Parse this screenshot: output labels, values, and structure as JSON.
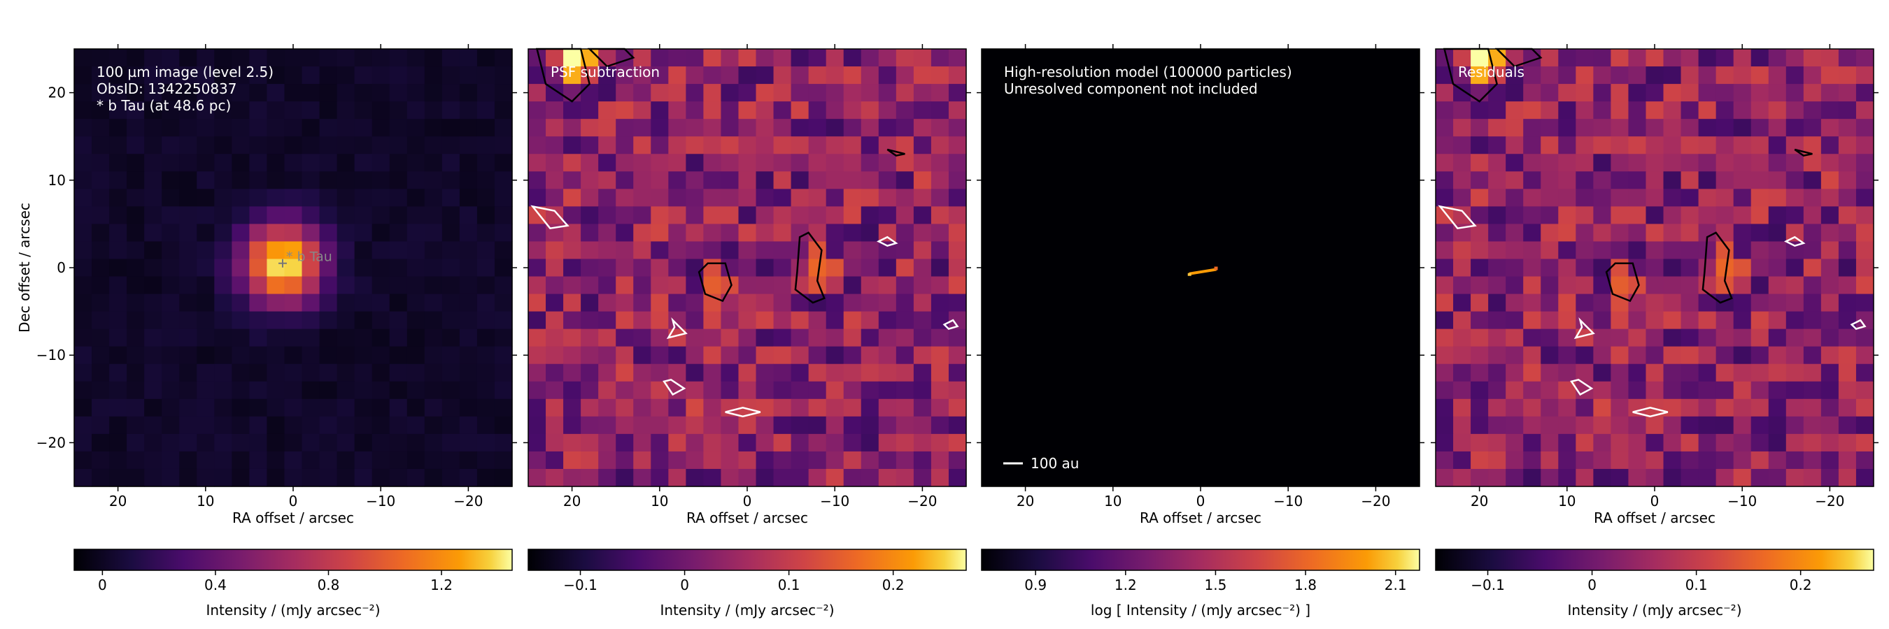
{
  "figure": {
    "panels": [
      {
        "key": "obs",
        "annotation_lines": [
          "100 µm image (level 2.5)",
          "ObsID: 1342250837",
          "* b Tau (at 48.6 pc)"
        ],
        "marker_label": "* b Tau",
        "xlabel": "RA offset / arcsec",
        "ylabel": "Dec offset / arcsec",
        "colorbar": {
          "label": "Intensity / (mJy arcsec⁻²)",
          "ticks": [
            "0",
            "0.4",
            "0.8",
            "1.2"
          ],
          "tick_values": [
            0,
            0.4,
            0.8,
            1.2
          ],
          "range": [
            -0.1,
            1.45
          ]
        }
      },
      {
        "key": "psfsub",
        "annotation_lines": [
          "PSF subtraction"
        ],
        "xlabel": "RA offset / arcsec",
        "colorbar": {
          "label": "Intensity / (mJy arcsec⁻²)",
          "ticks": [
            "−0.1",
            "0",
            "0.1",
            "0.2"
          ],
          "tick_values": [
            -0.1,
            0,
            0.1,
            0.2
          ],
          "range": [
            -0.15,
            0.27
          ]
        }
      },
      {
        "key": "model",
        "annotation_lines": [
          "High-resolution model (100000 particles)",
          "Unresolved component not included"
        ],
        "scalebar_label": "100 au",
        "xlabel": "RA offset / arcsec",
        "colorbar": {
          "label": "log [ Intensity / (mJy arcsec⁻²) ]",
          "ticks": [
            "0.9",
            "1.2",
            "1.5",
            "1.8",
            "2.1"
          ],
          "tick_values": [
            0.9,
            1.2,
            1.5,
            1.8,
            2.1
          ],
          "range": [
            0.72,
            2.18
          ]
        }
      },
      {
        "key": "resid",
        "annotation_lines": [
          "Residuals"
        ],
        "xlabel": "RA offset / arcsec",
        "colorbar": {
          "label": "Intensity / (mJy arcsec⁻²)",
          "ticks": [
            "−0.1",
            "0",
            "0.1",
            "0.2"
          ],
          "tick_values": [
            -0.1,
            0,
            0.1,
            0.2
          ],
          "range": [
            -0.15,
            0.27
          ]
        }
      }
    ]
  },
  "chart_data": [
    {
      "type": "heatmap",
      "panel": "100 µm image (level 2.5)",
      "x_ticks": [
        "20",
        "10",
        "0",
        "−10",
        "−20"
      ],
      "x_tick_values": [
        20,
        10,
        0,
        -10,
        -20
      ],
      "y_ticks": [
        "20",
        "10",
        "0",
        "−10",
        "−20"
      ],
      "y_tick_values": [
        20,
        10,
        0,
        -10,
        -20
      ],
      "xlim": [
        25,
        -25
      ],
      "ylim": [
        -25,
        25
      ],
      "source": {
        "name": "* b Tau",
        "ra_offset": 1.2,
        "dec_offset": 0.5,
        "peak": 1.45
      },
      "background": 0.02
    },
    {
      "type": "heatmap",
      "panel": "PSF subtraction",
      "x_ticks": [
        "20",
        "10",
        "0",
        "−10",
        "−20"
      ],
      "x_tick_values": [
        20,
        10,
        0,
        -10,
        -20
      ],
      "xlim": [
        25,
        -25
      ],
      "ylim": [
        -25,
        25
      ],
      "features": [
        {
          "ra_offset": 3.5,
          "dec_offset": -1.0,
          "value": 0.15
        },
        {
          "ra_offset": -7.0,
          "dec_offset": -0.5,
          "value": 0.16
        },
        {
          "ra_offset": 20.0,
          "dec_offset": 24.0,
          "value": 0.27
        }
      ]
    },
    {
      "type": "heatmap",
      "panel": "High-resolution model (100000 particles)",
      "x_ticks": [
        "20",
        "10",
        "0",
        "−10",
        "−20"
      ],
      "x_tick_values": [
        20,
        10,
        0,
        -10,
        -20
      ],
      "xlim": [
        25,
        -25
      ],
      "ylim": [
        -25,
        25
      ],
      "disk": {
        "ra_start": 1.3,
        "ra_end": -1.8,
        "dec_start": -0.7,
        "dec_end": -0.2
      }
    },
    {
      "type": "heatmap",
      "panel": "Residuals",
      "x_ticks": [
        "20",
        "10",
        "0",
        "−10",
        "−20"
      ],
      "x_tick_values": [
        20,
        10,
        0,
        -10,
        -20
      ],
      "xlim": [
        25,
        -25
      ],
      "ylim": [
        -25,
        25
      ]
    }
  ]
}
